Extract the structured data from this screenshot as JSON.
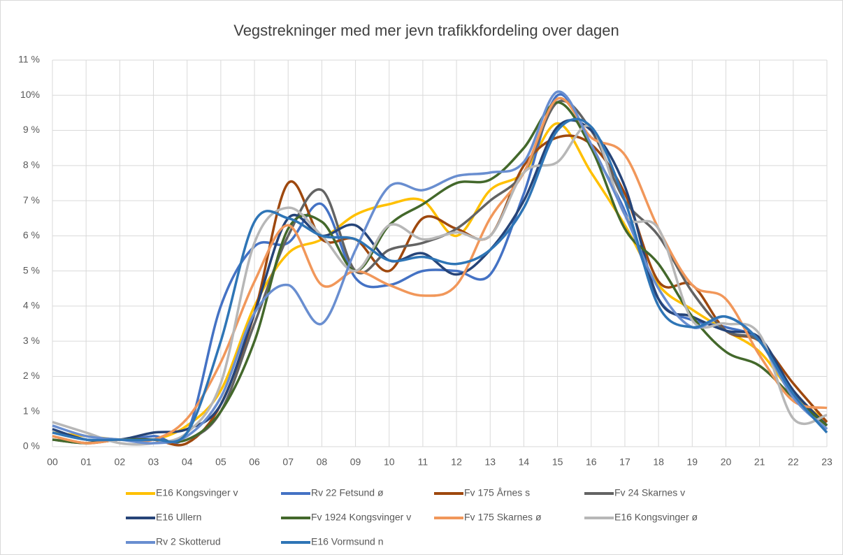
{
  "chart_data": {
    "type": "line",
    "title": "Vegstrekninger med mer jevn trafikkfordeling over dagen",
    "categories": [
      "00",
      "01",
      "02",
      "03",
      "04",
      "05",
      "06",
      "07",
      "08",
      "09",
      "10",
      "11",
      "12",
      "13",
      "14",
      "15",
      "16",
      "17",
      "18",
      "19",
      "20",
      "21",
      "22",
      "23"
    ],
    "ylim": [
      0,
      11
    ],
    "yticks": [
      {
        "value": 0,
        "label": "0 %"
      },
      {
        "value": 1,
        "label": "1 %"
      },
      {
        "value": 2,
        "label": "2 %"
      },
      {
        "value": 3,
        "label": "3 %"
      },
      {
        "value": 4,
        "label": "4 %"
      },
      {
        "value": 5,
        "label": "5 %"
      },
      {
        "value": 6,
        "label": "6 %"
      },
      {
        "value": 7,
        "label": "7 %"
      },
      {
        "value": 8,
        "label": "8 %"
      },
      {
        "value": 9,
        "label": "9 %"
      },
      {
        "value": 10,
        "label": "10%"
      },
      {
        "value": 11,
        "label": "11 %"
      }
    ],
    "grid": true,
    "legend": "bottom",
    "series": [
      {
        "name": "E16 Kongsvinger v",
        "color": "#ffc000",
        "values": [
          0.4,
          0.3,
          0.2,
          0.2,
          0.6,
          1.6,
          4.0,
          5.5,
          5.9,
          6.6,
          6.9,
          7.0,
          6.0,
          7.3,
          7.8,
          9.2,
          7.8,
          6.3,
          4.6,
          3.9,
          3.3,
          2.7,
          1.5,
          0.7
        ]
      },
      {
        "name": "Rv 22 Fetsund ø",
        "color": "#4472c4",
        "values": [
          0.5,
          0.2,
          0.2,
          0.3,
          0.4,
          4.0,
          5.7,
          5.8,
          6.9,
          4.8,
          4.6,
          5.0,
          5.0,
          4.9,
          7.2,
          10.0,
          8.5,
          6.7,
          4.2,
          3.6,
          3.4,
          3.0,
          1.4,
          0.5
        ]
      },
      {
        "name": "Fv 175 Årnes s",
        "color": "#9e480e",
        "values": [
          0.3,
          0.1,
          0.2,
          0.2,
          0.1,
          1.2,
          3.8,
          7.5,
          5.9,
          5.9,
          5.0,
          6.5,
          6.2,
          6.0,
          8.0,
          8.8,
          8.6,
          7.2,
          4.7,
          4.6,
          3.3,
          3.0,
          1.8,
          0.7
        ]
      },
      {
        "name": "Fv 24 Skarnes v",
        "color": "#636363",
        "values": [
          0.2,
          0.1,
          0.2,
          0.2,
          0.2,
          1.0,
          3.5,
          6.0,
          7.3,
          5.0,
          5.6,
          5.8,
          6.2,
          7.0,
          7.8,
          9.8,
          9.0,
          7.0,
          6.0,
          4.4,
          3.3,
          3.0,
          1.6,
          0.6
        ]
      },
      {
        "name": "E16 Ullern",
        "color": "#264478",
        "values": [
          0.5,
          0.2,
          0.2,
          0.4,
          0.5,
          1.2,
          3.8,
          6.5,
          6.0,
          6.3,
          5.3,
          5.5,
          4.9,
          5.6,
          7.0,
          9.1,
          9.0,
          7.4,
          4.2,
          3.7,
          3.3,
          3.1,
          1.6,
          0.6
        ]
      },
      {
        "name": "Fv 1924 Kongsvinger v",
        "color": "#43682b",
        "values": [
          0.2,
          0.1,
          0.2,
          0.2,
          0.2,
          1.0,
          3.0,
          6.2,
          6.4,
          5.0,
          6.3,
          6.9,
          7.5,
          7.6,
          8.5,
          9.8,
          8.5,
          6.2,
          5.2,
          3.7,
          2.7,
          2.3,
          1.4,
          0.6
        ]
      },
      {
        "name": "Fv 175 Skarnes ø",
        "color": "#f1975a",
        "values": [
          0.3,
          0.1,
          0.2,
          0.2,
          0.8,
          2.4,
          4.7,
          6.3,
          4.6,
          5.0,
          4.6,
          4.3,
          4.6,
          6.5,
          7.8,
          9.9,
          8.8,
          8.3,
          6.2,
          4.6,
          4.2,
          2.6,
          1.3,
          1.1
        ]
      },
      {
        "name": "E16 Kongsvinger ø",
        "color": "#b7b7b7",
        "values": [
          0.7,
          0.4,
          0.1,
          0.1,
          0.4,
          1.8,
          5.8,
          6.8,
          6.0,
          5.0,
          6.3,
          5.9,
          6.1,
          6.0,
          7.8,
          8.1,
          9.1,
          6.6,
          6.2,
          3.6,
          3.5,
          3.2,
          0.8,
          0.9
        ]
      },
      {
        "name": "Rv 2 Skotterud",
        "color": "#698ed0",
        "values": [
          0.6,
          0.3,
          0.2,
          0.1,
          0.3,
          1.4,
          3.8,
          4.6,
          3.5,
          5.6,
          7.4,
          7.3,
          7.7,
          7.8,
          8.1,
          10.1,
          8.6,
          6.6,
          4.5,
          3.4,
          3.7,
          3.0,
          1.4,
          0.5
        ]
      },
      {
        "name": "E16 Vormsund n",
        "color": "#2e75b6",
        "values": [
          0.4,
          0.2,
          0.2,
          0.2,
          0.4,
          3.0,
          6.4,
          6.5,
          6.0,
          5.9,
          5.3,
          5.4,
          5.2,
          5.6,
          6.8,
          9.0,
          9.1,
          7.0,
          4.0,
          3.4,
          3.7,
          3.0,
          1.5,
          0.4
        ]
      }
    ]
  }
}
